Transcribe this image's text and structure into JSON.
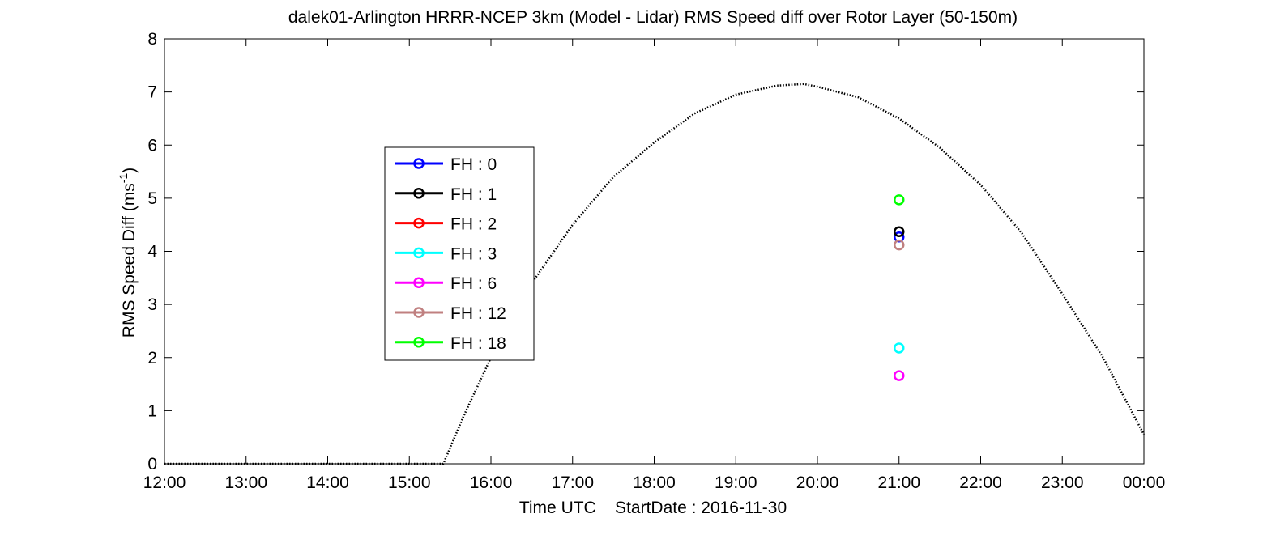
{
  "chart_data": {
    "type": "scatter",
    "title": "dalek01-Arlington HRRR-NCEP 3km (Model - Lidar) RMS Speed diff over Rotor Layer (50-150m)",
    "xlabel": "Time UTC    StartDate : 2016-11-30",
    "ylabel_main": "RMS Speed Diff (ms",
    "ylabel_sup": "-1",
    "ylabel_close": ")",
    "xlim": [
      "12:00",
      "00:00"
    ],
    "ylim": [
      0,
      8
    ],
    "x_ticks": [
      "12:00",
      "13:00",
      "14:00",
      "15:00",
      "16:00",
      "17:00",
      "18:00",
      "19:00",
      "20:00",
      "21:00",
      "22:00",
      "23:00",
      "00:00"
    ],
    "y_ticks": [
      0,
      1,
      2,
      3,
      4,
      5,
      6,
      7,
      8
    ],
    "grid": false,
    "legend_position": "upper-left",
    "series": [
      {
        "name": "FH : 0",
        "color": "#0000ff",
        "x": [
          "21:00"
        ],
        "y": [
          4.27
        ]
      },
      {
        "name": "FH : 1",
        "color": "#000000",
        "x": [
          "21:00"
        ],
        "y": [
          4.37
        ]
      },
      {
        "name": "FH : 2",
        "color": "#ff0000",
        "x": [],
        "y": []
      },
      {
        "name": "FH : 3",
        "color": "#00ffff",
        "x": [
          "21:00"
        ],
        "y": [
          2.18
        ]
      },
      {
        "name": "FH : 6",
        "color": "#ff00ff",
        "x": [
          "21:00"
        ],
        "y": [
          1.66
        ]
      },
      {
        "name": "FH : 12",
        "color": "#c08080",
        "x": [
          "21:00"
        ],
        "y": [
          4.12
        ]
      },
      {
        "name": "FH : 18",
        "color": "#00ff00",
        "x": [
          "21:00"
        ],
        "y": [
          4.97
        ]
      }
    ],
    "reference_curve": {
      "style": "dotted",
      "color": "#000000",
      "x": [
        "12:00",
        "15:25",
        "15:40",
        "16:00",
        "16:30",
        "17:00",
        "17:30",
        "18:00",
        "18:30",
        "19:00",
        "19:30",
        "19:50",
        "20:00",
        "20:30",
        "21:00",
        "21:30",
        "22:00",
        "22:30",
        "23:00",
        "23:30",
        "00:00"
      ],
      "y": [
        0.0,
        0.0,
        0.9,
        2.0,
        3.4,
        4.5,
        5.4,
        6.05,
        6.6,
        6.95,
        7.12,
        7.15,
        7.1,
        6.9,
        6.5,
        5.95,
        5.25,
        4.35,
        3.2,
        2.0,
        0.55
      ]
    }
  }
}
